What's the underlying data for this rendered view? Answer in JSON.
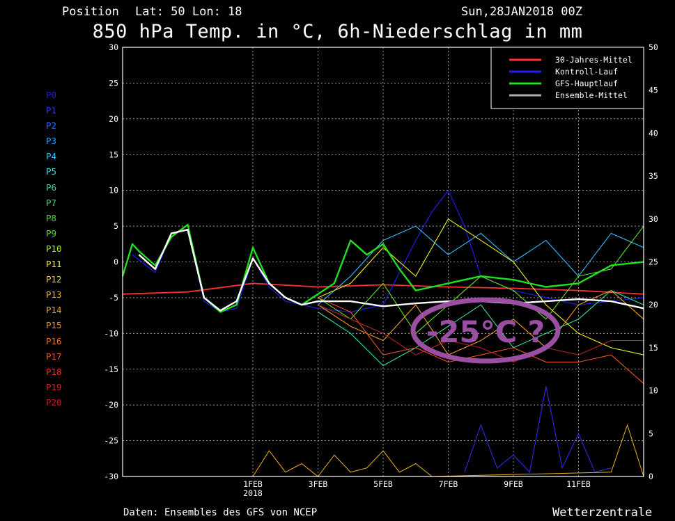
{
  "header": {
    "position_label": "Position",
    "lat_lon": "Lat: 50 Lon: 18",
    "run": "Sun,28JAN2018 00Z",
    "title": "850 hPa Temp. in °C, 6h-Niederschlag in mm"
  },
  "footer": {
    "source": "Daten: Ensembles des GFS von NCEP",
    "brand": "Wetterzentrale"
  },
  "overlay": {
    "text": "-25°C ?",
    "color": "#9a4fa3"
  },
  "chart_data": {
    "type": "line",
    "title": "850 hPa Temp. in °C, 6h-Niederschlag in mm",
    "xlabel": "",
    "ylabel": "",
    "x_range_days": [
      0,
      16
    ],
    "ylim": [
      -30,
      30
    ],
    "y2lim": [
      0,
      50
    ],
    "y_ticks": [
      30,
      25,
      20,
      15,
      10,
      5,
      0,
      -5,
      -10,
      -15,
      -20,
      -25,
      -30
    ],
    "y2_ticks": [
      50,
      45,
      40,
      35,
      30,
      25,
      20,
      15,
      10,
      5,
      0
    ],
    "x_ticks": [
      {
        "day": 4,
        "label": "1FEB",
        "sub": "2018"
      },
      {
        "day": 6,
        "label": "3FEB",
        "sub": ""
      },
      {
        "day": 8,
        "label": "5FEB",
        "sub": ""
      },
      {
        "day": 10,
        "label": "7FEB",
        "sub": ""
      },
      {
        "day": 12,
        "label": "9FEB",
        "sub": ""
      },
      {
        "day": 14,
        "label": "11FEB",
        "sub": ""
      }
    ],
    "grid": true,
    "legend_position": "top-right",
    "legend": [
      {
        "name": "30-Jahres-Mittel",
        "color": "#ff3030"
      },
      {
        "name": "Kontroll-Lauf",
        "color": "#2020ff"
      },
      {
        "name": "GFS-Hauptlauf",
        "color": "#20e020"
      },
      {
        "name": "Ensemble-Mittel",
        "color": "#b0b0b0"
      }
    ],
    "members": [
      {
        "name": "P0",
        "color": "#2020d0"
      },
      {
        "name": "P1",
        "color": "#3030ff"
      },
      {
        "name": "P2",
        "color": "#2a70ff"
      },
      {
        "name": "P3",
        "color": "#2aa0ff"
      },
      {
        "name": "P4",
        "color": "#30c0ff"
      },
      {
        "name": "P5",
        "color": "#30e0e0"
      },
      {
        "name": "P6",
        "color": "#30e0a0"
      },
      {
        "name": "P7",
        "color": "#30e060"
      },
      {
        "name": "P8",
        "color": "#40e030"
      },
      {
        "name": "P9",
        "color": "#60e020"
      },
      {
        "name": "P10",
        "color": "#a0f020"
      },
      {
        "name": "P11",
        "color": "#f0f020"
      },
      {
        "name": "P12",
        "color": "#f0d020"
      },
      {
        "name": "P13",
        "color": "#f0b020"
      },
      {
        "name": "P14",
        "color": "#f0a020"
      },
      {
        "name": "P15",
        "color": "#f09020"
      },
      {
        "name": "P16",
        "color": "#f07020"
      },
      {
        "name": "P17",
        "color": "#f05020"
      },
      {
        "name": "P18",
        "color": "#f03020"
      },
      {
        "name": "P19",
        "color": "#e02020"
      },
      {
        "name": "P20",
        "color": "#c02020"
      }
    ],
    "series": [
      {
        "name": "30-Jahres-Mittel",
        "color": "#ff3030",
        "x": [
          0,
          2,
          4,
          6,
          8,
          10,
          12,
          14,
          16
        ],
        "values": [
          -4.5,
          -4.2,
          -3.0,
          -3.5,
          -3.2,
          -3.5,
          -3.7,
          -4.0,
          -4.5
        ]
      },
      {
        "name": "Ensemble-Mittel",
        "color": "#ffffff",
        "x": [
          0.5,
          1.0,
          1.5,
          2.0,
          2.5,
          3.0,
          3.5,
          4.0,
          4.5,
          5.0,
          5.5,
          6.0,
          7.0,
          8.0,
          9.0,
          10.0,
          11.0,
          12.0,
          13.0,
          14.0,
          15.0,
          16.0
        ],
        "values": [
          1.0,
          -1.0,
          4.0,
          4.5,
          -5.0,
          -6.8,
          -5.5,
          0.5,
          -3.0,
          -5.0,
          -6.0,
          -5.5,
          -5.5,
          -6.2,
          -5.8,
          -5.5,
          -5.5,
          -5.8,
          -5.5,
          -5.2,
          -5.5,
          -6.5
        ]
      },
      {
        "name": "GFS-Hauptlauf",
        "color": "#20e020",
        "x": [
          0.0,
          0.3,
          0.5,
          1.0,
          1.5,
          2.0,
          2.5,
          3.0,
          3.5,
          4.0,
          4.5,
          5.0,
          5.5,
          6.0,
          6.5,
          7.0,
          7.5,
          8.0,
          8.5,
          9.0,
          9.5,
          10.0,
          11.0,
          12.0,
          13.0,
          14.0,
          15.0,
          16.0
        ],
        "values": [
          -2.0,
          2.5,
          1.5,
          -0.5,
          3.5,
          5.2,
          -5.0,
          -7.0,
          -6.0,
          2.0,
          -3.0,
          -5.0,
          -6.0,
          -4.5,
          -3.0,
          3.0,
          1.0,
          2.5,
          -1.0,
          -4.0,
          -3.5,
          -3.0,
          -2.0,
          -2.5,
          -3.5,
          -3.0,
          -0.5,
          0.0
        ]
      },
      {
        "name": "Kontroll-Lauf",
        "color": "#2020ff",
        "x": [
          0.3,
          1.0,
          1.5,
          2.0,
          2.5,
          3.0,
          3.5,
          4.0,
          4.5,
          5.0,
          6.0,
          7.0,
          8.0,
          9.0,
          9.5,
          10.0,
          10.5,
          11.0,
          12.0,
          13.0,
          14.0,
          15.0,
          16.0
        ],
        "values": [
          1.0,
          -1.5,
          4.0,
          4.5,
          -5.5,
          -7.0,
          -6.5,
          0.5,
          -3.5,
          -5.5,
          -6.5,
          -7.0,
          -6.0,
          3.0,
          7.0,
          10.0,
          5.0,
          -2.0,
          -4.0,
          -5.0,
          -6.0,
          -5.5,
          -5.0
        ]
      },
      {
        "name": "P4",
        "color": "#30c0ff",
        "x": [
          6.0,
          7.0,
          8.0,
          9.0,
          10.0,
          11.0,
          12.0,
          13.0,
          14.0,
          15.0,
          16.0
        ],
        "values": [
          -6.0,
          -2.0,
          3.0,
          5.0,
          1.0,
          4.0,
          0.0,
          3.0,
          -2.0,
          4.0,
          2.0
        ]
      },
      {
        "name": "P6",
        "color": "#30e0a0",
        "x": [
          6.0,
          7.0,
          8.0,
          9.0,
          10.0,
          11.0,
          12.0,
          13.0,
          14.0,
          15.0,
          16.0
        ],
        "values": [
          -7.0,
          -10.0,
          -14.5,
          -12.0,
          -9.0,
          -6.0,
          -12.0,
          -10.0,
          -8.0,
          -4.0,
          -6.0
        ]
      },
      {
        "name": "P9",
        "color": "#60e020",
        "x": [
          6.0,
          7.0,
          8.0,
          9.0,
          10.0,
          11.0,
          12.0,
          13.0,
          14.0,
          15.0,
          16.0
        ],
        "values": [
          -5.0,
          -8.0,
          -3.0,
          -10.0,
          -6.0,
          -2.0,
          -4.0,
          -8.0,
          -2.0,
          -1.0,
          5.0
        ]
      },
      {
        "name": "P11",
        "color": "#f0f020",
        "x": [
          6.0,
          7.0,
          8.0,
          9.0,
          10.0,
          11.0,
          12.0,
          13.0,
          14.0,
          15.0,
          16.0
        ],
        "values": [
          -5.0,
          -3.0,
          2.0,
          -2.0,
          6.0,
          3.0,
          0.0,
          -6.0,
          -10.0,
          -12.0,
          -13.0
        ]
      },
      {
        "name": "P14",
        "color": "#f0a020",
        "x": [
          6.0,
          7.0,
          8.0,
          9.0,
          10.0,
          11.0,
          12.0,
          13.0,
          14.0,
          15.0,
          16.0
        ],
        "values": [
          -6.0,
          -9.0,
          -11.0,
          -6.0,
          -13.0,
          -11.0,
          -8.0,
          -12.0,
          -6.0,
          -4.0,
          -8.0
        ]
      },
      {
        "name": "P17",
        "color": "#f05020",
        "x": [
          6.0,
          7.0,
          8.0,
          9.0,
          10.0,
          11.0,
          12.0,
          13.0,
          14.0,
          15.0,
          16.0
        ],
        "values": [
          -5.0,
          -7.0,
          -13.0,
          -12.0,
          -14.0,
          -13.0,
          -12.0,
          -14.0,
          -14.0,
          -13.0,
          -17.0
        ]
      },
      {
        "name": "P20",
        "color": "#c02020",
        "x": [
          6.0,
          7.0,
          8.0,
          9.0,
          10.0,
          11.0,
          12.0,
          13.0,
          14.0,
          15.0,
          16.0
        ],
        "values": [
          -6.0,
          -8.0,
          -10.0,
          -13.0,
          -11.0,
          -12.0,
          -14.0,
          -12.0,
          -13.0,
          -11.0,
          -11.0
        ]
      }
    ],
    "precipitation": [
      {
        "name": "Kontroll-Lauf",
        "color": "#3030ff",
        "x": [
          10.5,
          11.0,
          11.5,
          12.0,
          12.5,
          13.0,
          13.5,
          14.0,
          14.5,
          15.0
        ],
        "values": [
          0.5,
          6.0,
          1.0,
          2.5,
          0.5,
          10.5,
          1.0,
          5.0,
          0.5,
          1.0
        ]
      },
      {
        "name": "P13",
        "color": "#f0b020",
        "x": [
          4.0,
          4.5,
          5.0,
          5.5,
          6.0,
          6.5,
          7.0,
          7.5,
          8.0,
          8.5,
          9.0,
          9.5,
          15.0,
          15.5,
          16.0
        ],
        "values": [
          0.0,
          3.0,
          0.5,
          1.5,
          0.0,
          2.5,
          0.5,
          1.0,
          3.0,
          0.5,
          1.5,
          0.0,
          0.5,
          6.0,
          0.0
        ]
      }
    ]
  }
}
